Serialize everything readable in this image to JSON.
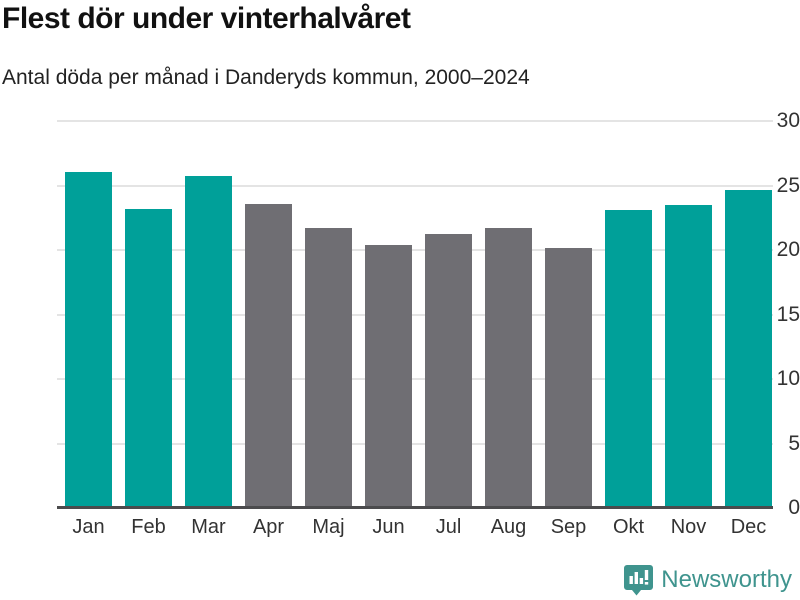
{
  "header": {
    "title": "Flest dör under vinterhalvåret",
    "subtitle": "Antal döda per månad i Danderyds kommun, 2000–2024"
  },
  "chart_data": {
    "type": "bar",
    "categories": [
      "Jan",
      "Feb",
      "Mar",
      "Apr",
      "Maj",
      "Jun",
      "Jul",
      "Aug",
      "Sep",
      "Okt",
      "Nov",
      "Dec"
    ],
    "values": [
      26.0,
      23.1,
      25.7,
      23.5,
      21.6,
      20.3,
      21.2,
      21.6,
      20.1,
      23.0,
      23.4,
      24.6
    ],
    "bar_groups": [
      "winter",
      "winter",
      "winter",
      "summer",
      "summer",
      "summer",
      "summer",
      "summer",
      "summer",
      "winter",
      "winter",
      "winter"
    ],
    "title": "Flest dör under vinterhalvåret",
    "subtitle": "Antal döda per månad i Danderyds kommun, 2000–2024",
    "xlabel": "",
    "ylabel": "",
    "ylim": [
      0,
      30
    ],
    "yticks": [
      0,
      5,
      10,
      15,
      20,
      25,
      30
    ],
    "grid": true,
    "legend": "none",
    "colors": {
      "winter": "#00a099",
      "summer": "#6f6e73",
      "gridline": "#e4e4e4",
      "axis": "#4b4b4d"
    }
  },
  "footer": {
    "brand": "Newsworthy",
    "brand_color": "#3f948e",
    "logo_icon": "bar-chart-speech-bubble-icon"
  }
}
